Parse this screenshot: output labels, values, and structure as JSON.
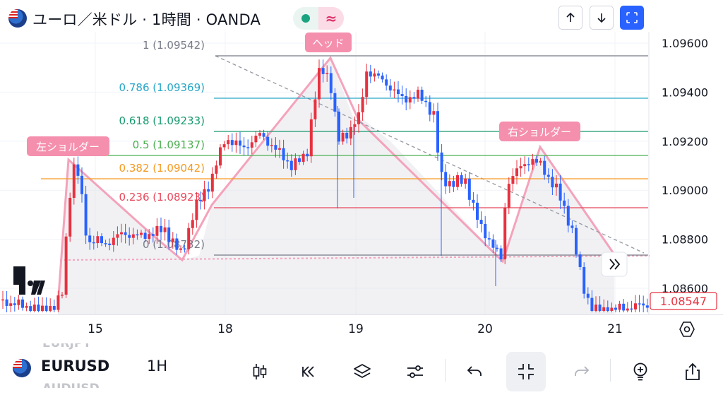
{
  "header": {
    "title": "ユーロ／米ドル · 1時間 · OANDA",
    "status_wave": "≈"
  },
  "chart": {
    "price_labels": [
      "1.09600",
      "1.09400",
      "1.09200",
      "1.09000",
      "1.08800",
      "1.08600"
    ],
    "last_price": "1.08547",
    "x_labels": [
      "15",
      "18",
      "19",
      "20",
      "21"
    ],
    "fib_levels": [
      {
        "label": "1 (1.09542)",
        "color": "#787b86"
      },
      {
        "label": "0.786 (1.09369)",
        "color": "#26a6c6"
      },
      {
        "label": "0.618 (1.09233)",
        "color": "#179a6e"
      },
      {
        "label": "0.5 (1.09137)",
        "color": "#4caf50"
      },
      {
        "label": "0.382 (1.09042)",
        "color": "#f59a22"
      },
      {
        "label": "0.236 (1.08923)",
        "color": "#e8475b"
      },
      {
        "label": "0 (1.08732)",
        "color": "#787b86"
      }
    ],
    "annotations": {
      "left_shoulder": "左ショルダー",
      "head": "ヘッド",
      "right_shoulder": "右ショルダー"
    },
    "colors": {
      "up": "#e8313f",
      "down": "#2962ff",
      "pattern": "#f4a3bb",
      "label_bg": "#f58fae",
      "accent": "#2962ff"
    },
    "watermark": "TV"
  },
  "bottombar": {
    "symbol": "EURUSD",
    "interval": "1H",
    "ghost_prev": "EURJPY",
    "ghost_next": "AUDUSD",
    "icons": [
      "candles-icon",
      "replay-icon",
      "layers-icon",
      "indicators-icon",
      "undo-icon",
      "minimize-icon",
      "redo-icon",
      "ideas-icon",
      "share-icon"
    ]
  }
}
